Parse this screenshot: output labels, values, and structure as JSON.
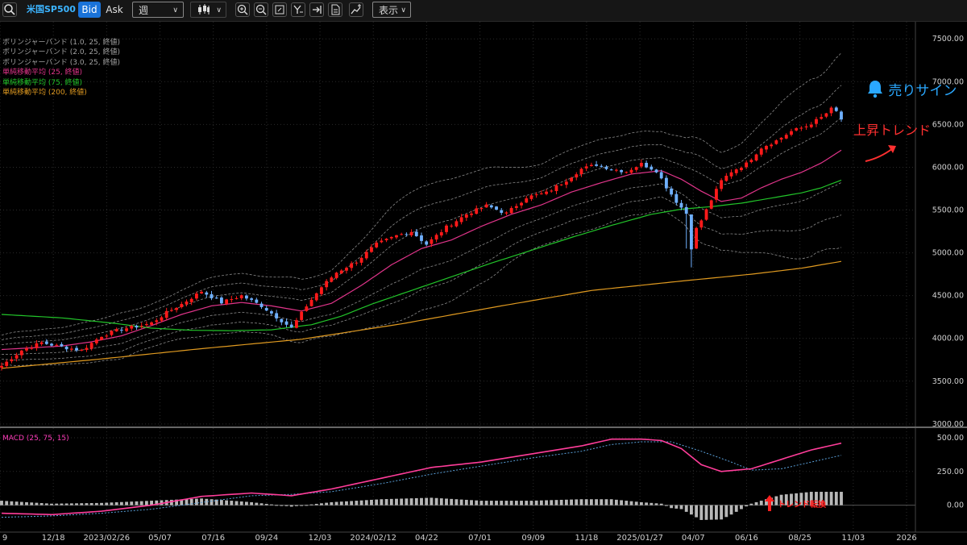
{
  "toolbar": {
    "search_icon": "search-icon",
    "symbol": "米国SP500",
    "bid_label": "Bid",
    "ask_label": "Ask",
    "timeframe": "週",
    "chart_type_icon": "candlestick-icon",
    "tool_icons": [
      "zoom-in-icon",
      "zoom-out-icon",
      "fit-icon",
      "drawing-icon",
      "jump-to-latest-icon",
      "document-icon",
      "add-indicator-icon"
    ],
    "display_label": "表示",
    "colors": {
      "bid_active": "#1a73d9",
      "symbol": "#3cb4ff"
    }
  },
  "legend": [
    {
      "label": "ボリンジャーバンド (1.0, 25, 終値)",
      "color": "#a0a0a0"
    },
    {
      "label": "ボリンジャーバンド (2.0, 25, 終値)",
      "color": "#a0a0a0"
    },
    {
      "label": "ボリンジャーバンド (3.0, 25, 終値)",
      "color": "#a0a0a0"
    },
    {
      "label": "単純移動平均 (25, 終値)",
      "color": "#e0348a"
    },
    {
      "label": "単純移動平均 (75, 終値)",
      "color": "#22c52a"
    },
    {
      "label": "単純移動平均 (200, 終値)",
      "color": "#e09a20"
    }
  ],
  "macd_label": "MACD (25, 75, 15)",
  "annotations": {
    "sell_signal": "売りサイン",
    "uptrend": "上昇トレンド",
    "trend_change": "トレンド転換"
  },
  "chart_data": {
    "type": "candlestick",
    "timeframe": "weekly",
    "x_ticks": [
      "9",
      "12/18",
      "2023/02/26",
      "05/07",
      "07/16",
      "09/24",
      "12/03",
      "2024/02/12",
      "04/22",
      "07/01",
      "09/09",
      "11/18",
      "2025/01/27",
      "04/07",
      "06/16",
      "08/25",
      "11/03",
      "2026"
    ],
    "price_axis": {
      "ticks": [
        "3000.00",
        "3500.00",
        "4000.00",
        "4500.00",
        "5000.00",
        "5500.00",
        "6000.00",
        "6500.00",
        "7000.00",
        "7500.00"
      ],
      "ylim": [
        2980,
        7700
      ]
    },
    "macd_axis": {
      "ticks": [
        "0.00",
        "250.00",
        "500.00"
      ],
      "ylim": [
        -200,
        560
      ]
    },
    "price_anchors": [
      [
        0,
        3680
      ],
      [
        4,
        3860
      ],
      [
        8,
        3950
      ],
      [
        12,
        3900
      ],
      [
        16,
        3860
      ],
      [
        20,
        4030
      ],
      [
        24,
        4110
      ],
      [
        28,
        4150
      ],
      [
        30,
        4180
      ],
      [
        33,
        4300
      ],
      [
        36,
        4400
      ],
      [
        40,
        4550
      ],
      [
        44,
        4420
      ],
      [
        48,
        4500
      ],
      [
        52,
        4380
      ],
      [
        55,
        4250
      ],
      [
        58,
        4120
      ],
      [
        61,
        4380
      ],
      [
        64,
        4600
      ],
      [
        67,
        4770
      ],
      [
        71,
        4900
      ],
      [
        75,
        5100
      ],
      [
        79,
        5200
      ],
      [
        82,
        5250
      ],
      [
        85,
        5100
      ],
      [
        89,
        5300
      ],
      [
        93,
        5450
      ],
      [
        97,
        5550
      ],
      [
        101,
        5460
      ],
      [
        105,
        5650
      ],
      [
        109,
        5700
      ],
      [
        113,
        5850
      ],
      [
        116,
        5980
      ],
      [
        119,
        6030
      ],
      [
        122,
        5980
      ],
      [
        125,
        5950
      ],
      [
        128,
        6040
      ],
      [
        131,
        5960
      ],
      [
        133,
        5770
      ],
      [
        135,
        5600
      ],
      [
        137,
        5460
      ],
      [
        138,
        5060
      ],
      [
        139,
        5280
      ],
      [
        140,
        5380
      ],
      [
        142,
        5620
      ],
      [
        144,
        5840
      ],
      [
        146,
        5950
      ],
      [
        149,
        6040
      ],
      [
        152,
        6230
      ],
      [
        155,
        6310
      ],
      [
        158,
        6420
      ],
      [
        161,
        6480
      ],
      [
        164,
        6580
      ],
      [
        166,
        6680
      ],
      [
        167,
        6650
      ],
      [
        168,
        6560
      ]
    ],
    "series": [
      {
        "name": "ボリンジャーバンド (1.0, 25, 終値)",
        "type": "band",
        "color": "#8a8a8a",
        "offset": 1
      },
      {
        "name": "ボリンジャーバンド (2.0, 25, 終値)",
        "type": "band",
        "color": "#8a8a8a",
        "offset": 2
      },
      {
        "name": "ボリンジャーバンド (3.0, 25, 終値)",
        "type": "band",
        "color": "#8a8a8a",
        "offset": 3
      },
      {
        "name": "単純移動平均 (25, 終値)",
        "type": "line",
        "color": "#e0348a",
        "points": [
          [
            0,
            3870
          ],
          [
            6,
            3890
          ],
          [
            12,
            3910
          ],
          [
            18,
            3960
          ],
          [
            24,
            4030
          ],
          [
            30,
            4150
          ],
          [
            36,
            4280
          ],
          [
            42,
            4380
          ],
          [
            48,
            4420
          ],
          [
            54,
            4380
          ],
          [
            60,
            4320
          ],
          [
            66,
            4410
          ],
          [
            72,
            4620
          ],
          [
            78,
            4860
          ],
          [
            84,
            5050
          ],
          [
            90,
            5150
          ],
          [
            96,
            5310
          ],
          [
            102,
            5450
          ],
          [
            108,
            5560
          ],
          [
            114,
            5710
          ],
          [
            120,
            5820
          ],
          [
            126,
            5920
          ],
          [
            132,
            5960
          ],
          [
            136,
            5860
          ],
          [
            140,
            5720
          ],
          [
            144,
            5600
          ],
          [
            148,
            5640
          ],
          [
            152,
            5760
          ],
          [
            156,
            5860
          ],
          [
            160,
            5940
          ],
          [
            164,
            6050
          ],
          [
            168,
            6200
          ]
        ]
      },
      {
        "name": "単純移動平均 (75, 終値)",
        "type": "line",
        "color": "#22c52a",
        "points": [
          [
            0,
            4280
          ],
          [
            12,
            4240
          ],
          [
            22,
            4180
          ],
          [
            30,
            4120
          ],
          [
            38,
            4095
          ],
          [
            46,
            4090
          ],
          [
            54,
            4100
          ],
          [
            62,
            4160
          ],
          [
            68,
            4260
          ],
          [
            74,
            4400
          ],
          [
            82,
            4560
          ],
          [
            90,
            4720
          ],
          [
            98,
            4880
          ],
          [
            106,
            5030
          ],
          [
            114,
            5180
          ],
          [
            122,
            5320
          ],
          [
            130,
            5450
          ],
          [
            136,
            5510
          ],
          [
            142,
            5540
          ],
          [
            148,
            5580
          ],
          [
            154,
            5640
          ],
          [
            160,
            5700
          ],
          [
            164,
            5760
          ],
          [
            168,
            5850
          ]
        ]
      },
      {
        "name": "単純移動平均 (200, 終値)",
        "type": "line",
        "color": "#e09a20",
        "points": [
          [
            0,
            3650
          ],
          [
            20,
            3760
          ],
          [
            40,
            3880
          ],
          [
            60,
            3990
          ],
          [
            80,
            4170
          ],
          [
            100,
            4380
          ],
          [
            118,
            4560
          ],
          [
            136,
            4670
          ],
          [
            150,
            4750
          ],
          [
            160,
            4820
          ],
          [
            168,
            4900
          ]
        ]
      },
      {
        "name": "MACD",
        "type": "macd_line",
        "color": "#ff3d9a",
        "points": [
          [
            0,
            -60
          ],
          [
            10,
            -70
          ],
          [
            20,
            -45
          ],
          [
            30,
            0
          ],
          [
            40,
            65
          ],
          [
            50,
            90
          ],
          [
            58,
            70
          ],
          [
            66,
            120
          ],
          [
            76,
            200
          ],
          [
            86,
            280
          ],
          [
            96,
            320
          ],
          [
            106,
            380
          ],
          [
            116,
            440
          ],
          [
            122,
            490
          ],
          [
            128,
            490
          ],
          [
            132,
            480
          ],
          [
            136,
            420
          ],
          [
            140,
            300
          ],
          [
            144,
            250
          ],
          [
            150,
            270
          ],
          [
            156,
            340
          ],
          [
            162,
            410
          ],
          [
            168,
            460
          ]
        ]
      },
      {
        "name": "Signal",
        "type": "macd_signal",
        "color": "#5a9fd8",
        "points": [
          [
            0,
            -90
          ],
          [
            10,
            -80
          ],
          [
            20,
            -60
          ],
          [
            30,
            -30
          ],
          [
            40,
            20
          ],
          [
            50,
            70
          ],
          [
            58,
            80
          ],
          [
            66,
            100
          ],
          [
            76,
            160
          ],
          [
            86,
            230
          ],
          [
            96,
            290
          ],
          [
            106,
            350
          ],
          [
            116,
            400
          ],
          [
            122,
            450
          ],
          [
            128,
            470
          ],
          [
            134,
            470
          ],
          [
            140,
            400
          ],
          [
            146,
            320
          ],
          [
            150,
            260
          ],
          [
            156,
            270
          ],
          [
            162,
            320
          ],
          [
            168,
            370
          ]
        ]
      }
    ]
  }
}
